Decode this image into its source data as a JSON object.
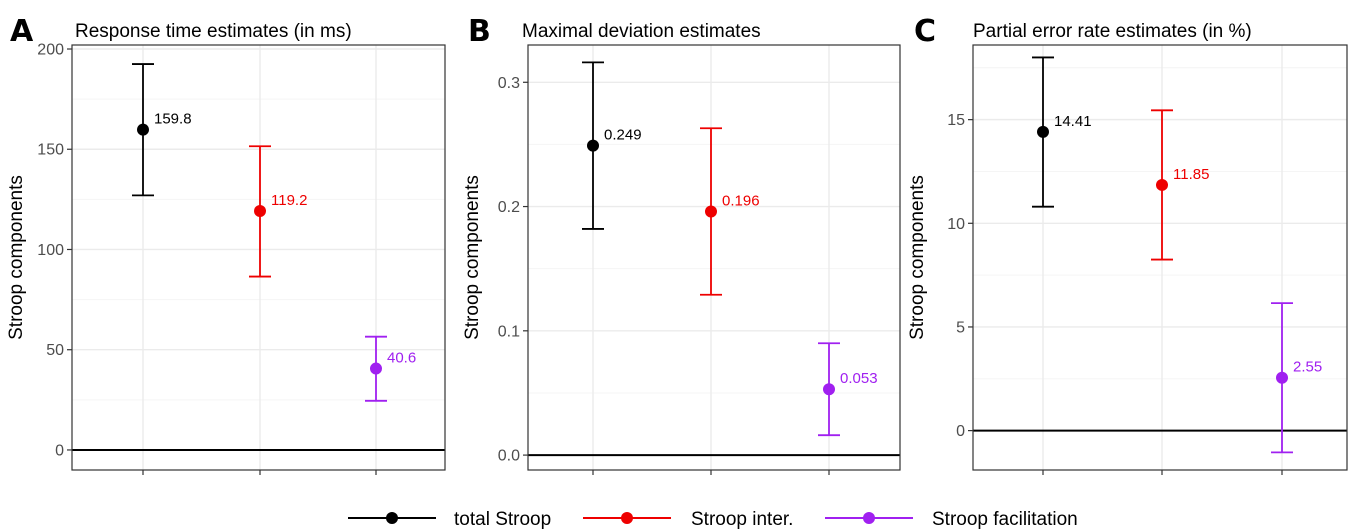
{
  "chart_data": [
    {
      "type": "scatter",
      "panel_letter": "A",
      "title": "Response time estimates (in ms)",
      "ylabel": "Stroop components",
      "ylim": [
        -10,
        202
      ],
      "yticks": [
        0,
        50,
        100,
        150,
        200
      ],
      "ytick_labels": [
        "0",
        "50",
        "100",
        "150",
        "200"
      ],
      "grid": true,
      "reference_line": 0,
      "series": [
        {
          "name": "total Stroop",
          "estimate": 159.8,
          "lower": 127.0,
          "upper": 192.5,
          "label": "159.8"
        },
        {
          "name": "Stroop inter.",
          "estimate": 119.2,
          "lower": 86.5,
          "upper": 151.5,
          "label": "119.2"
        },
        {
          "name": "Stroop facilitation",
          "estimate": 40.6,
          "lower": 24.5,
          "upper": 56.5,
          "label": "40.6"
        }
      ]
    },
    {
      "type": "scatter",
      "panel_letter": "B",
      "title": "Maximal deviation estimates",
      "ylabel": "Stroop components",
      "ylim": [
        -0.012,
        0.33
      ],
      "yticks": [
        0.0,
        0.1,
        0.2,
        0.3
      ],
      "ytick_labels": [
        "0.0",
        "0.1",
        "0.2",
        "0.3"
      ],
      "grid": true,
      "reference_line": 0,
      "series": [
        {
          "name": "total Stroop",
          "estimate": 0.249,
          "lower": 0.182,
          "upper": 0.316,
          "label": "0.249"
        },
        {
          "name": "Stroop inter.",
          "estimate": 0.196,
          "lower": 0.129,
          "upper": 0.263,
          "label": "0.196"
        },
        {
          "name": "Stroop facilitation",
          "estimate": 0.053,
          "lower": 0.016,
          "upper": 0.09,
          "label": "0.053"
        }
      ]
    },
    {
      "type": "scatter",
      "panel_letter": "C",
      "title": "Partial error rate estimates (in %)",
      "ylabel": "Stroop components",
      "ylim": [
        -1.9,
        18.6
      ],
      "yticks": [
        0,
        5,
        10,
        15
      ],
      "ytick_labels": [
        "0",
        "5",
        "10",
        "15"
      ],
      "grid": true,
      "reference_line": 0,
      "series": [
        {
          "name": "total Stroop",
          "estimate": 14.41,
          "lower": 10.8,
          "upper": 18.0,
          "label": "14.41"
        },
        {
          "name": "Stroop inter.",
          "estimate": 11.85,
          "lower": 8.25,
          "upper": 15.45,
          "label": "11.85"
        },
        {
          "name": "Stroop facilitation",
          "estimate": 2.55,
          "lower": -1.05,
          "upper": 6.15,
          "label": "2.55"
        }
      ]
    }
  ],
  "legend": {
    "placement": "bottom",
    "items": [
      {
        "label": "total Stroop",
        "color": "#000000"
      },
      {
        "label": "Stroop inter.",
        "color": "#ee0000"
      },
      {
        "label": "Stroop facilitation",
        "color": "#a020f0"
      }
    ]
  },
  "colors": {
    "total_stroop": "#000000",
    "stroop_inter": "#ee0000",
    "stroop_facilitation": "#a020f0",
    "panel_border": "#333333",
    "grid_major": "#ebebeb",
    "grid_minor": "#f5f5f5",
    "tick_text": "#4d4d4d"
  }
}
